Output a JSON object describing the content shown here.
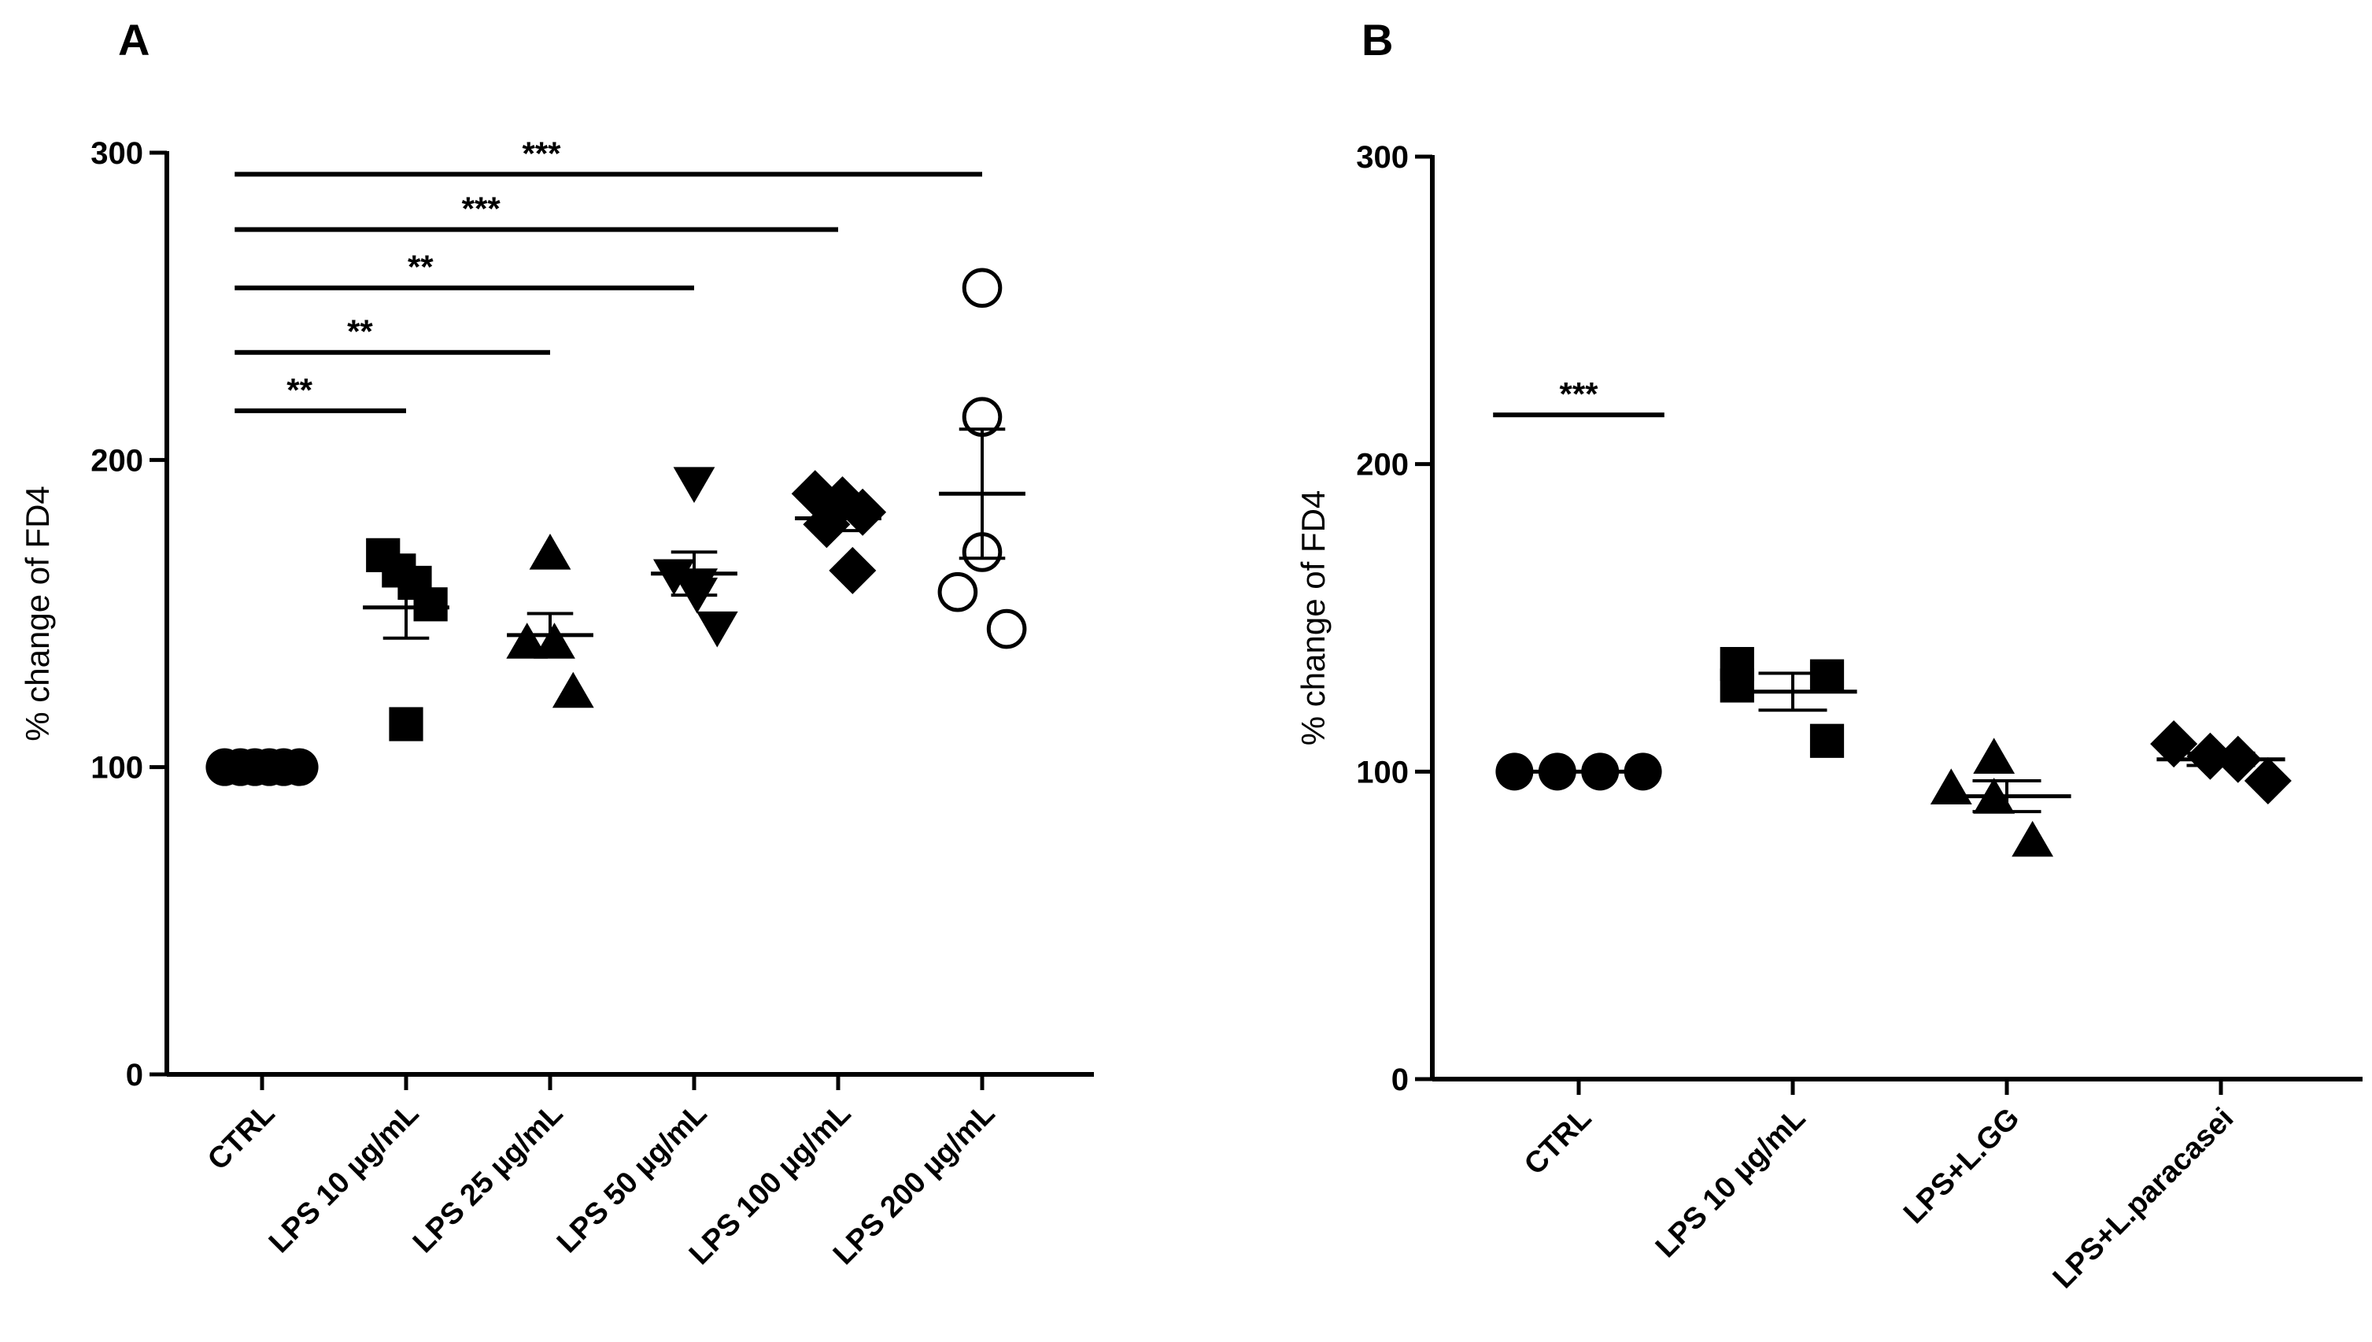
{
  "chart_data": [
    {
      "panel": "A",
      "type": "scatter",
      "ylabel": "% change of FD4",
      "ylim": [
        0,
        300
      ],
      "yticks": [
        0,
        100,
        200,
        300
      ],
      "categories": [
        "CTRL",
        "LPS 10 µg/mL",
        "LPS 25 µg/mL",
        "LPS 50 µg/mL",
        "LPS 100 µg/mL",
        "LPS 200 µg/mL"
      ],
      "series": [
        {
          "name": "CTRL",
          "marker": "circle-filled",
          "points": [
            {
              "dx": -0.26,
              "y": 100
            },
            {
              "dx": -0.15,
              "y": 100
            },
            {
              "dx": -0.05,
              "y": 100
            },
            {
              "dx": 0.05,
              "y": 100
            },
            {
              "dx": 0.15,
              "y": 100
            },
            {
              "dx": 0.26,
              "y": 100
            }
          ],
          "mean": 100,
          "sem": 0
        },
        {
          "name": "LPS 10 µg/mL",
          "marker": "square-filled",
          "points": [
            {
              "dx": -0.16,
              "y": 169
            },
            {
              "dx": -0.05,
              "y": 164
            },
            {
              "dx": 0.06,
              "y": 160
            },
            {
              "dx": 0.17,
              "y": 153
            },
            {
              "dx": 0.0,
              "y": 114
            }
          ],
          "mean": 152,
          "sem": 10
        },
        {
          "name": "LPS 25 µg/mL",
          "marker": "triangle-up-filled",
          "points": [
            {
              "dx": 0.0,
              "y": 169
            },
            {
              "dx": -0.16,
              "y": 140
            },
            {
              "dx": 0.03,
              "y": 140
            },
            {
              "dx": 0.16,
              "y": 124
            }
          ],
          "mean": 143,
          "sem": 7
        },
        {
          "name": "LPS 50 µg/mL",
          "marker": "triangle-down-filled",
          "points": [
            {
              "dx": 0.0,
              "y": 193
            },
            {
              "dx": -0.14,
              "y": 163
            },
            {
              "dx": 0.02,
              "y": 160
            },
            {
              "dx": 0.16,
              "y": 146
            },
            {
              "dx": 0.02,
              "y": 157
            }
          ],
          "mean": 163,
          "sem": 7
        },
        {
          "name": "LPS 100 µg/mL",
          "marker": "diamond-filled",
          "points": [
            {
              "dx": -0.16,
              "y": 189
            },
            {
              "dx": 0.03,
              "y": 187
            },
            {
              "dx": 0.17,
              "y": 183
            },
            {
              "dx": -0.08,
              "y": 179
            },
            {
              "dx": 0.1,
              "y": 164
            }
          ],
          "mean": 181,
          "sem": 4
        },
        {
          "name": "LPS 200 µg/mL",
          "marker": "circle-open",
          "points": [
            {
              "dx": 0.0,
              "y": 256
            },
            {
              "dx": 0.0,
              "y": 214
            },
            {
              "dx": 0.0,
              "y": 170
            },
            {
              "dx": -0.17,
              "y": 157
            },
            {
              "dx": 0.17,
              "y": 145
            }
          ],
          "mean": 189,
          "sem": 21
        }
      ],
      "significance": [
        {
          "from": "CTRL",
          "to": "LPS 10 µg/mL",
          "y": 216,
          "label": "**"
        },
        {
          "from": "CTRL",
          "to": "LPS 25 µg/mL",
          "y": 235,
          "label": "**"
        },
        {
          "from": "CTRL",
          "to": "LPS 50 µg/mL",
          "y": 256,
          "label": "**"
        },
        {
          "from": "CTRL",
          "to": "LPS 100 µg/mL",
          "y": 275,
          "label": "***"
        },
        {
          "from": "CTRL",
          "to": "LPS 200 µg/mL",
          "y": 293,
          "label": "***"
        }
      ]
    },
    {
      "panel": "B",
      "type": "scatter",
      "ylabel": "% change of FD4",
      "ylim": [
        0,
        300
      ],
      "yticks": [
        0,
        100,
        200,
        300
      ],
      "categories": [
        "CTRL",
        "LPS 10 µg/mL",
        "LPS+L.GG",
        "LPS+L.paracasei"
      ],
      "series": [
        {
          "name": "CTRL",
          "marker": "circle-filled",
          "points": [
            {
              "dx": -0.3,
              "y": 100
            },
            {
              "dx": -0.1,
              "y": 100
            },
            {
              "dx": 0.1,
              "y": 100
            },
            {
              "dx": 0.3,
              "y": 100
            }
          ],
          "mean": 100,
          "sem": 0
        },
        {
          "name": "LPS 10 µg/mL",
          "marker": "square-filled",
          "points": [
            {
              "dx": -0.26,
              "y": 135
            },
            {
              "dx": -0.26,
              "y": 128
            },
            {
              "dx": 0.16,
              "y": 131
            },
            {
              "dx": 0.16,
              "y": 110
            }
          ],
          "mean": 126,
          "sem": 6
        },
        {
          "name": "LPS+L.GG",
          "marker": "triangle-up-filled",
          "points": [
            {
              "dx": -0.26,
              "y": 94
            },
            {
              "dx": -0.06,
              "y": 104
            },
            {
              "dx": -0.06,
              "y": 91
            },
            {
              "dx": 0.12,
              "y": 77
            }
          ],
          "mean": 92,
          "sem": 5
        },
        {
          "name": "LPS+L.paracasei",
          "marker": "diamond-filled",
          "points": [
            {
              "dx": -0.22,
              "y": 109
            },
            {
              "dx": -0.05,
              "y": 105
            },
            {
              "dx": 0.08,
              "y": 104
            },
            {
              "dx": 0.22,
              "y": 97
            }
          ],
          "mean": 104,
          "sem": 2
        }
      ],
      "significance": [
        {
          "from_x": -0.4,
          "to_x": 0.4,
          "y": 216,
          "label": "***"
        }
      ]
    }
  ]
}
